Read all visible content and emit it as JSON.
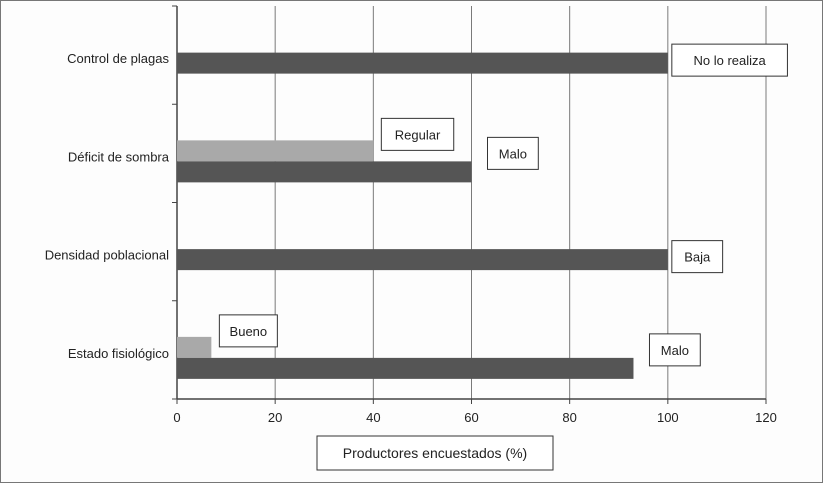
{
  "chart_data": {
    "type": "bar",
    "orientation": "horizontal",
    "categories": [
      "Control de plagas",
      "Déficit de sombra",
      "Densidad poblacional",
      "Estado fisiológico"
    ],
    "bars": [
      {
        "category": "Control de plagas",
        "value": 100,
        "label": "No lo realiza",
        "color": "#555555"
      },
      {
        "category": "Déficit de sombra",
        "value": 40,
        "label": "Regular",
        "color": "#a9a9a9"
      },
      {
        "category": "Déficit de sombra",
        "value": 60,
        "label": "Malo",
        "color": "#555555"
      },
      {
        "category": "Densidad poblacional",
        "value": 100,
        "label": "Baja",
        "color": "#555555"
      },
      {
        "category": "Estado fisiológico",
        "value": 7,
        "label": "Bueno",
        "color": "#a9a9a9"
      },
      {
        "category": "Estado fisiológico",
        "value": 93,
        "label": "Malo",
        "color": "#555555"
      }
    ],
    "xlabel": "Productores encuestados (%)",
    "xlim": [
      0,
      120
    ],
    "xticks": [
      0,
      20,
      40,
      60,
      80,
      100,
      120
    ],
    "grid": "vertical",
    "legend": "none"
  }
}
